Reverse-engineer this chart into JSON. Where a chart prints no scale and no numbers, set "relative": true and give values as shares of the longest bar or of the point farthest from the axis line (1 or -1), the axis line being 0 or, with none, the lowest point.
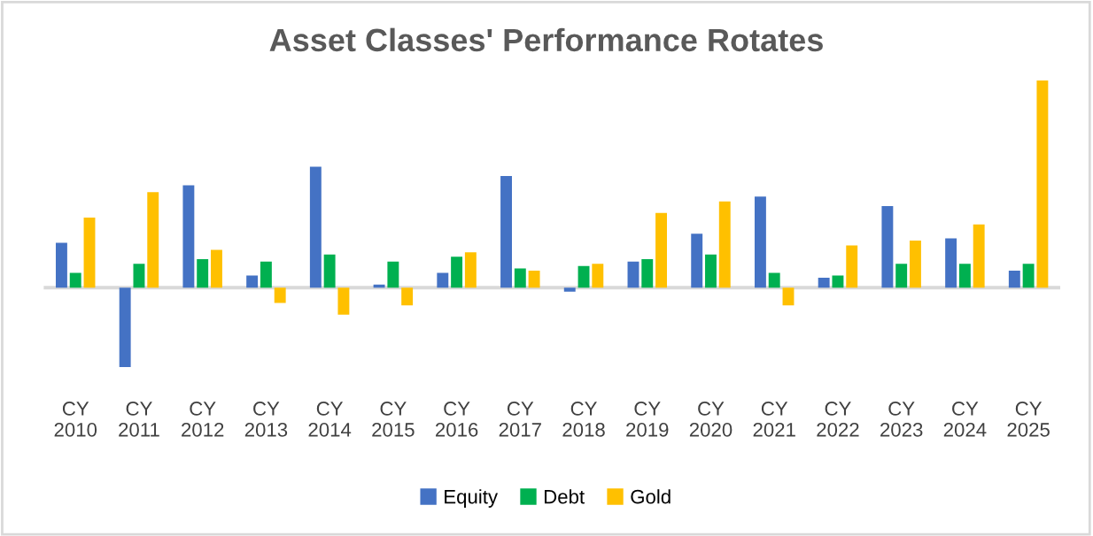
{
  "chart_data": {
    "type": "bar",
    "title": "Asset Classes' Performance Rotates",
    "relative": true,
    "legend": "bottom",
    "grid": false,
    "categories": [
      "CY\n2010",
      "CY\n2011",
      "CY\n2012",
      "CY\n2013",
      "CY\n2014",
      "CY\n2015",
      "CY\n2016",
      "CY\n2017",
      "CY\n2018",
      "CY\n2019",
      "CY\n2020",
      "CY\n2021",
      "CY\n2022",
      "CY\n2023",
      "CY\n2024",
      "CY\n2025"
    ],
    "series": [
      {
        "name": "Equity",
        "color": "#4472c4",
        "values": [
          0.216,
          -0.383,
          0.494,
          0.059,
          0.584,
          0.015,
          0.071,
          0.539,
          -0.019,
          0.126,
          0.26,
          0.439,
          0.048,
          0.394,
          0.238,
          0.082
        ]
      },
      {
        "name": "Debt",
        "color": "#00b050",
        "values": [
          0.071,
          0.115,
          0.138,
          0.126,
          0.16,
          0.126,
          0.149,
          0.093,
          0.104,
          0.138,
          0.16,
          0.071,
          0.059,
          0.115,
          0.115,
          0.115
        ]
      },
      {
        "name": "Gold",
        "color": "#ffc000",
        "values": [
          0.338,
          0.461,
          0.182,
          -0.074,
          -0.13,
          -0.086,
          0.171,
          0.082,
          0.115,
          0.361,
          0.416,
          -0.086,
          0.204,
          0.227,
          0.305,
          1
        ]
      }
    ]
  }
}
